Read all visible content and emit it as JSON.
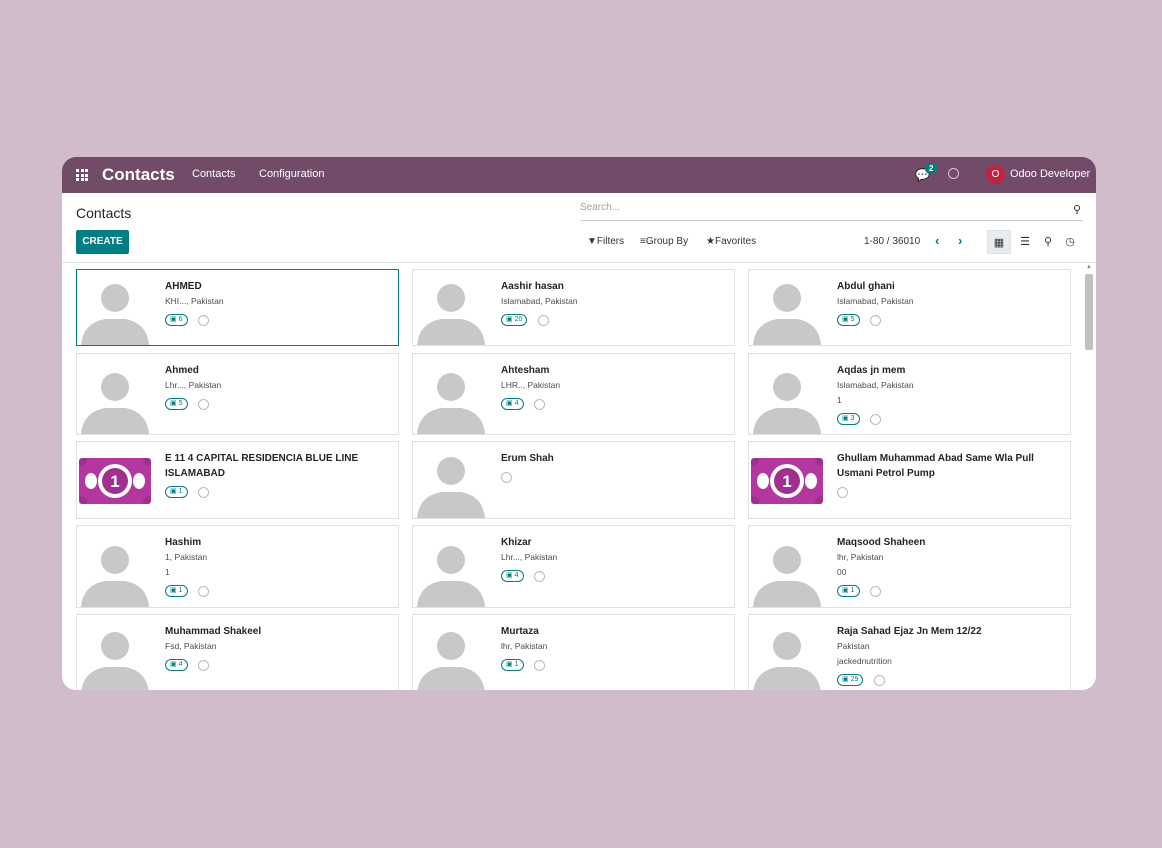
{
  "navbar": {
    "app_title": "Contacts",
    "menus": [
      "Contacts",
      "Configuration"
    ],
    "chat_count": "2",
    "user_initial": "O",
    "user_name": "Odoo Developer",
    "bg_color": "#714b67"
  },
  "control": {
    "page_title": "Contacts",
    "search_placeholder": "Search...",
    "create_label": "CREATE",
    "filters_label": "Filters",
    "groupby_label": "Group By",
    "favorites_label": "Favorites",
    "pager": "1-80 / 36010",
    "accent_color": "#017e84",
    "views": [
      "kanban-view-icon",
      "list-view-icon",
      "map-view-icon",
      "activity-view-icon"
    ]
  },
  "contacts": [
    {
      "name": "AHMED",
      "lines": [
        "KHI..., Pakistan"
      ],
      "count": "6",
      "image": "placeholder"
    },
    {
      "name": "Aashir hasan",
      "lines": [
        "Islamabad, Pakistan"
      ],
      "count": "20",
      "image": "placeholder"
    },
    {
      "name": "Abdul ghani",
      "lines": [
        "Islamabad, Pakistan"
      ],
      "count": "5",
      "image": "placeholder"
    },
    {
      "name": "Ahmed",
      "lines": [
        "Lhr..., Pakistan"
      ],
      "count": "5",
      "image": "placeholder"
    },
    {
      "name": "Ahtesham",
      "lines": [
        "LHR.., Pakistan"
      ],
      "count": "4",
      "image": "placeholder"
    },
    {
      "name": "Aqdas jn mem",
      "lines": [
        "Islamabad, Pakistan",
        "1"
      ],
      "count": "3",
      "image": "placeholder"
    },
    {
      "name": "E 11 4 CAPITAL RESIDENCIA BLUE LINE ISLAMABAD",
      "lines": [],
      "count": "1",
      "image": "money"
    },
    {
      "name": "Erum Shah",
      "lines": [],
      "count": "",
      "image": "placeholder"
    },
    {
      "name": "Ghullam Muhammad Abad Same Wla Pull Usmani Petrol Pump",
      "lines": [],
      "count": "",
      "image": "money"
    },
    {
      "name": "Hashim",
      "lines": [
        "1, Pakistan",
        "1"
      ],
      "count": "1",
      "image": "placeholder"
    },
    {
      "name": "Khizar",
      "lines": [
        "Lhr..., Pakistan"
      ],
      "count": "4",
      "image": "placeholder"
    },
    {
      "name": "Maqsood Shaheen",
      "lines": [
        "lhr, Pakistan",
        "00"
      ],
      "count": "1",
      "image": "placeholder"
    },
    {
      "name": "Muhammad Shakeel",
      "lines": [
        "Fsd, Pakistan"
      ],
      "count": "4",
      "image": "placeholder"
    },
    {
      "name": "Murtaza",
      "lines": [
        "lhr, Pakistan"
      ],
      "count": "1",
      "image": "placeholder"
    },
    {
      "name": "Raja Sahad Ejaz Jn Mem 12/22",
      "lines": [
        "Pakistan",
        "jackednutrition"
      ],
      "count": "29",
      "image": "placeholder"
    }
  ]
}
